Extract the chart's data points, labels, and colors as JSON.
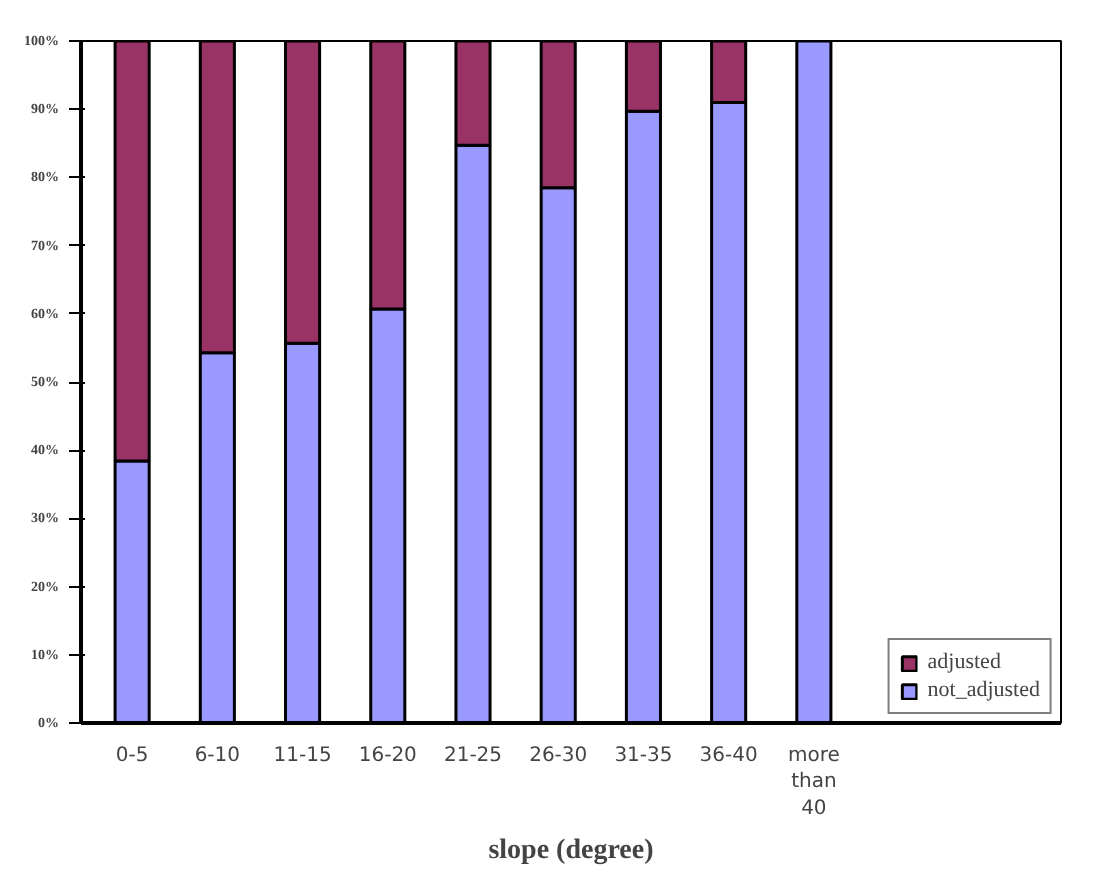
{
  "chart_data": {
    "type": "bar",
    "stacked": true,
    "xlabel": "slope (degree)",
    "categories": [
      "0-5",
      "6-10",
      "11-15",
      "16-20",
      "21-25",
      "26-30",
      "31-35",
      "36-40",
      "more than 40"
    ],
    "series": [
      {
        "name": "not_adjusted",
        "color": "#9999ff",
        "values": [
          38.4,
          54.3,
          55.7,
          60.7,
          84.7,
          78.5,
          89.7,
          91,
          100
        ]
      },
      {
        "name": "adjusted",
        "color": "#993366",
        "values": [
          61.6,
          45.7,
          44.3,
          39.3,
          15.3,
          21.5,
          10.3,
          9,
          0
        ]
      }
    ],
    "ylim": [
      0,
      100
    ],
    "yticks": [
      {
        "value": 0,
        "label": "0%"
      },
      {
        "value": 10,
        "label": "10%"
      },
      {
        "value": 20,
        "label": "20%"
      },
      {
        "value": 30,
        "label": "30%"
      },
      {
        "value": 40,
        "label": "40%"
      },
      {
        "value": 50,
        "label": "50%"
      },
      {
        "value": 60,
        "label": "60%"
      },
      {
        "value": 70,
        "label": "70%"
      },
      {
        "value": 80,
        "label": "80%"
      },
      {
        "value": 90,
        "label": "90%"
      },
      {
        "value": 100,
        "label": "100%"
      }
    ],
    "grid": false,
    "legend": "bottom right"
  }
}
